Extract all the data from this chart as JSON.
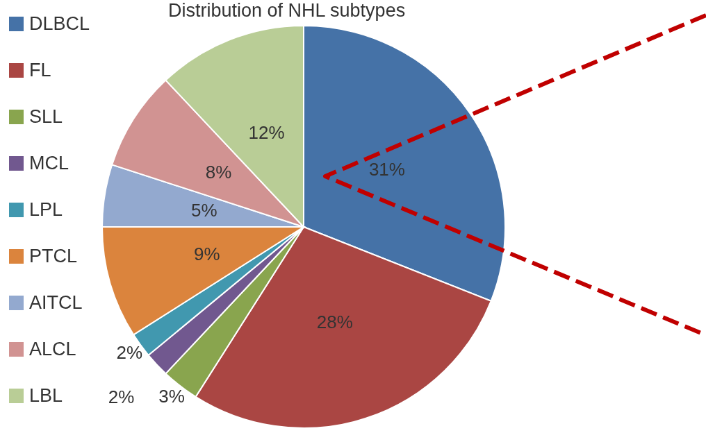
{
  "chart_data": {
    "type": "pie",
    "title": "Distribution of NHL subtypes",
    "categories": [
      "DLBCL",
      "FL",
      "SLL",
      "MCL",
      "LPL",
      "PTCL",
      "AITCL",
      "ALCL",
      "LBL"
    ],
    "values": [
      31,
      28,
      3,
      2,
      2,
      9,
      5,
      8,
      12
    ],
    "colors": [
      "#4572a7",
      "#aa4643",
      "#89a54e",
      "#71588f",
      "#4198af",
      "#db843d",
      "#93a9cf",
      "#d19392",
      "#b9cd96"
    ],
    "value_labels": [
      "31%",
      "28%",
      "3%",
      "2%",
      "2%",
      "9%",
      "5%",
      "8%",
      "12%"
    ],
    "legend": "left"
  }
}
